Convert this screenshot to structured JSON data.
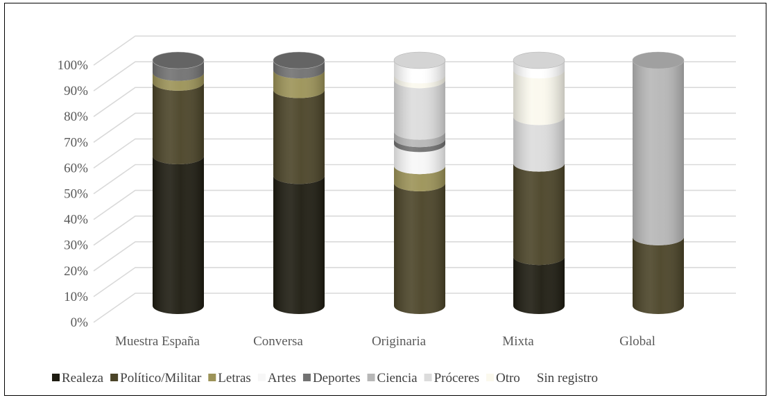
{
  "chart_data": {
    "type": "bar",
    "subtype": "100% stacked 3D cylinder",
    "title": "",
    "xlabel": "",
    "ylabel": "",
    "ylim": [
      0,
      100
    ],
    "yticks": [
      "0%",
      "10%",
      "20%",
      "30%",
      "40%",
      "50%",
      "60%",
      "70%",
      "80%",
      "90%",
      "100%"
    ],
    "categories": [
      "Muestra España",
      "Conversa",
      "Originaria",
      "Mixta",
      "Global"
    ],
    "series": [
      {
        "name": "Realeza",
        "color": "#1e1c11",
        "values": [
          61,
          53,
          0,
          20,
          0
        ]
      },
      {
        "name": "Político/Militar",
        "color": "#4b4428",
        "values": [
          30,
          35,
          50,
          38,
          28
        ]
      },
      {
        "name": "Letras",
        "color": "#9c9358",
        "values": [
          4,
          8,
          7,
          0,
          0
        ]
      },
      {
        "name": "Artes",
        "color": "#f7f7f7",
        "values": [
          0,
          0,
          9,
          0,
          0
        ]
      },
      {
        "name": "Deportes",
        "color": "#727272",
        "values": [
          5,
          4,
          2,
          0,
          0
        ]
      },
      {
        "name": "Ciencia",
        "color": "#b7b7b7",
        "values": [
          0,
          0,
          3,
          0,
          72
        ]
      },
      {
        "name": "Próceres",
        "color": "#dcdcdc",
        "values": [
          0,
          0,
          21,
          19,
          0
        ]
      },
      {
        "name": "Otro",
        "color": "#fbf9ee",
        "values": [
          0,
          0,
          2,
          19,
          0
        ]
      },
      {
        "name": "Sin registro",
        "color": "#ffffff",
        "values": [
          0,
          0,
          6,
          4,
          0
        ]
      }
    ],
    "grid": true,
    "legend_position": "bottom"
  }
}
